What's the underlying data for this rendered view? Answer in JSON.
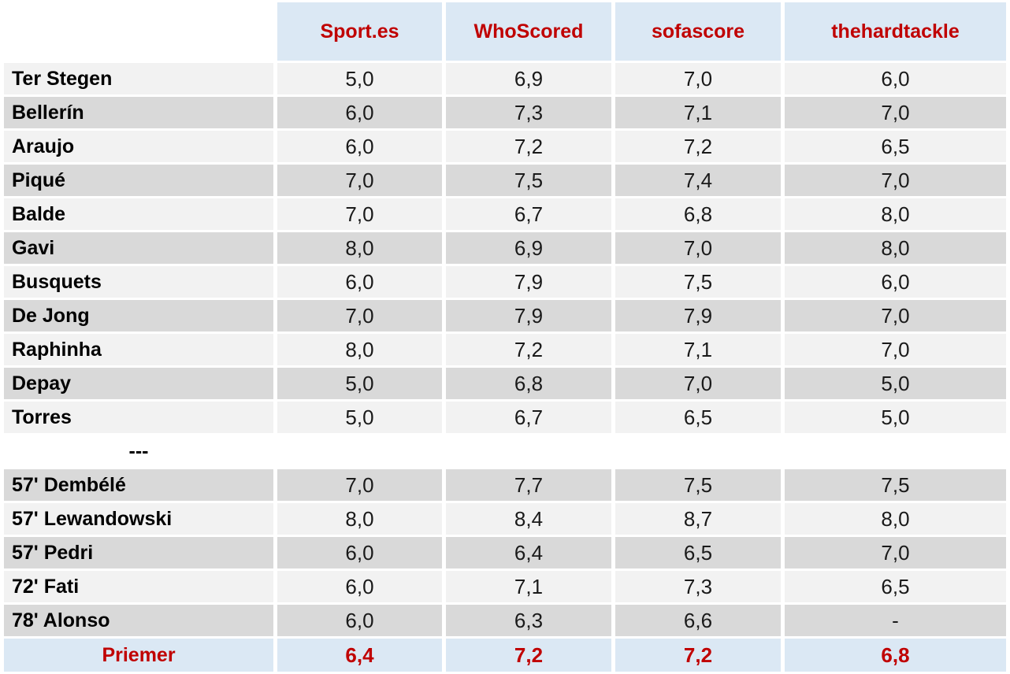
{
  "colors": {
    "header_bg": "#dbe8f4",
    "accent_red": "#c00000",
    "row_light": "#f2f2f2",
    "row_dark": "#d9d9d9",
    "text": "#1a1a1a"
  },
  "chart_data": {
    "type": "table",
    "columns": [
      "",
      "Sport.es",
      "WhoScored",
      "sofascore",
      "thehardtackle"
    ],
    "rows": [
      {
        "name": "Ter Stegen",
        "values": [
          "5,0",
          "6,9",
          "7,0",
          "6,0"
        ]
      },
      {
        "name": "Bellerín",
        "values": [
          "6,0",
          "7,3",
          "7,1",
          "7,0"
        ]
      },
      {
        "name": "Araujo",
        "values": [
          "6,0",
          "7,2",
          "7,2",
          "6,5"
        ]
      },
      {
        "name": "Piqué",
        "values": [
          "7,0",
          "7,5",
          "7,4",
          "7,0"
        ]
      },
      {
        "name": "Balde",
        "values": [
          "7,0",
          "6,7",
          "6,8",
          "8,0"
        ]
      },
      {
        "name": "Gavi",
        "values": [
          "8,0",
          "6,9",
          "7,0",
          "8,0"
        ]
      },
      {
        "name": "Busquets",
        "values": [
          "6,0",
          "7,9",
          "7,5",
          "6,0"
        ]
      },
      {
        "name": "De Jong",
        "values": [
          "7,0",
          "7,9",
          "7,9",
          "7,0"
        ]
      },
      {
        "name": "Raphinha",
        "values": [
          "8,0",
          "7,2",
          "7,1",
          "7,0"
        ]
      },
      {
        "name": "Depay",
        "values": [
          "5,0",
          "6,8",
          "7,0",
          "5,0"
        ]
      },
      {
        "name": "Torres",
        "values": [
          "5,0",
          "6,7",
          "6,5",
          "5,0"
        ]
      },
      {
        "separator": true,
        "name": "---"
      },
      {
        "name": "57' Dembélé",
        "values": [
          "7,0",
          "7,7",
          "7,5",
          "7,5"
        ]
      },
      {
        "name": "57' Lewandowski",
        "values": [
          "8,0",
          "8,4",
          "8,7",
          "8,0"
        ]
      },
      {
        "name": "57' Pedri",
        "values": [
          "6,0",
          "6,4",
          "6,5",
          "7,0"
        ]
      },
      {
        "name": "72' Fati",
        "values": [
          "6,0",
          "7,1",
          "7,3",
          "6,5"
        ]
      },
      {
        "name": "78' Alonso",
        "values": [
          "6,0",
          "6,3",
          "6,6",
          "-"
        ]
      }
    ],
    "footer": {
      "name": "Priemer",
      "values": [
        "6,4",
        "7,2",
        "7,2",
        "6,8"
      ]
    }
  }
}
